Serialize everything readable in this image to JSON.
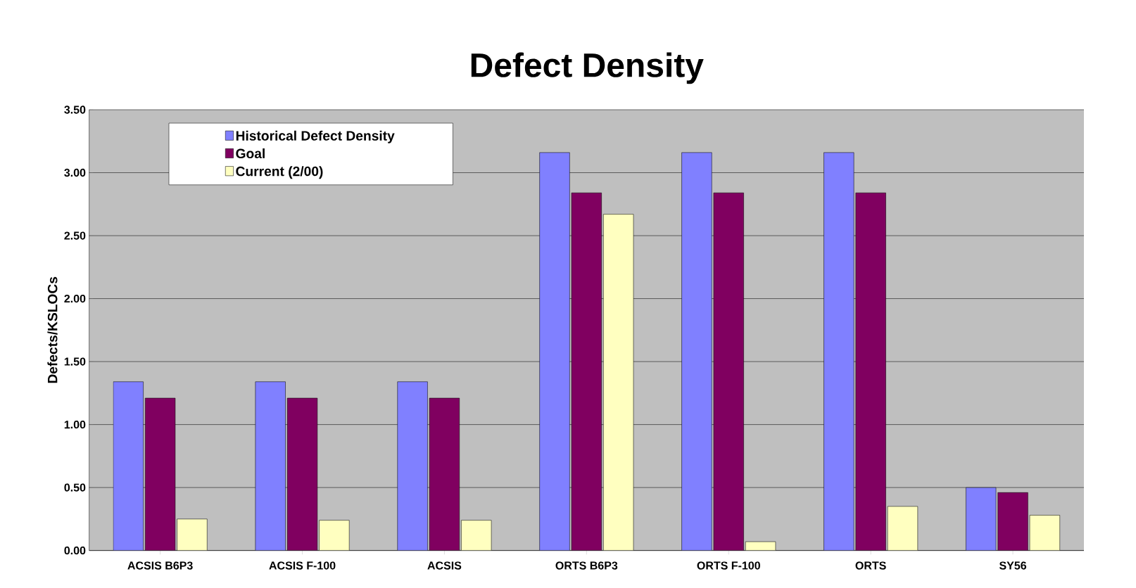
{
  "chart_data": {
    "type": "bar",
    "title": "Defect Density",
    "ylabel": "Defects/KSLOCs",
    "categories": [
      "ACSIS B6P3",
      "ACSIS F-100",
      "ACSIS",
      "ORTS B6P3",
      "ORTS F-100",
      "ORTS",
      "SY56"
    ],
    "series": [
      {
        "name": "Historical Defect Density",
        "color": "#8080ff",
        "values": [
          1.34,
          1.34,
          1.34,
          3.16,
          3.16,
          3.16,
          0.5
        ]
      },
      {
        "name": "Goal",
        "color": "#800060",
        "values": [
          1.21,
          1.21,
          1.21,
          2.84,
          2.84,
          2.84,
          0.46
        ]
      },
      {
        "name": "Current (2/00)",
        "color": "#ffffc0",
        "values": [
          0.25,
          0.24,
          0.24,
          2.67,
          0.07,
          0.35,
          0.28
        ]
      }
    ],
    "ylim": [
      0,
      3.5
    ],
    "yticks": [
      {
        "value": 0,
        "label": "0.00"
      },
      {
        "value": 0.5,
        "label": "0.50"
      },
      {
        "value": 1,
        "label": "1.00"
      },
      {
        "value": 1.5,
        "label": "1.50"
      },
      {
        "value": 2,
        "label": "2.00"
      },
      {
        "value": 2.5,
        "label": "2.50"
      },
      {
        "value": 3,
        "label": "3.00"
      },
      {
        "value": 3.5,
        "label": "3.50"
      }
    ],
    "grid": "y",
    "legend": "top left"
  }
}
